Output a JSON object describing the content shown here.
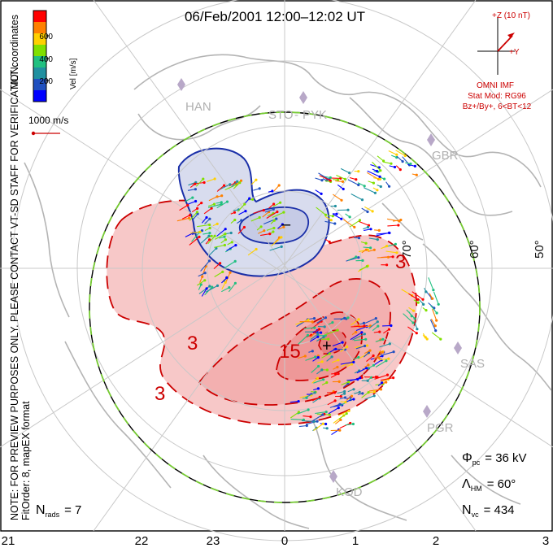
{
  "title": "06/Feb/2001 12:00–12:02 UT",
  "coords_label": "MLT coordinates",
  "side_note_line1": "NOTE: FOR PREVIEW PURPOSES ONLY. PLEASE CONTACT VT-SD STAFF FOR VERIFICATION.",
  "side_note_line2": "FitOrder: 8, mapEX format",
  "colorbar": {
    "unit_label": "Vel [m/s]",
    "ticks": [
      "600",
      "400",
      "200"
    ],
    "colors": [
      "#ff0000",
      "#ff8000",
      "#ffd000",
      "#80e000",
      "#20c080",
      "#2090a0",
      "#2050c0",
      "#0000ff"
    ]
  },
  "scale_label": "1000 m/s",
  "imf": {
    "axis_z": "+Z (10 nT)",
    "axis_y": "+Y",
    "line1": "OMNI IMF",
    "line2": "Stat Mod: RG96",
    "line3": "Bz+/By+, 6<BT<12",
    "color": "#cc0000"
  },
  "stations": [
    "HAN",
    "STO",
    "PYK",
    "GBR",
    "SAS",
    "PGR",
    "KOD"
  ],
  "lat_labels": [
    "70°",
    "60°",
    "50°"
  ],
  "mlt_labels": [
    "21",
    "22",
    "23",
    "0",
    "1",
    "2",
    "3"
  ],
  "contour_labels": [
    "3",
    "3",
    "15",
    "3",
    "–",
    "+"
  ],
  "stats": {
    "phi_symbol": "Φ",
    "phi_sub": "pc",
    "phi_value": "= 36 kV",
    "lambda_symbol": "Λ",
    "lambda_sub": "HM",
    "lambda_value": "= 60°",
    "nvc_symbol": "N",
    "nvc_sub": "vc",
    "nvc_value": "= 434",
    "nrads_symbol": "N",
    "nrads_sub": "rads",
    "nrads_value": "= 7"
  },
  "colors": {
    "positive_fill": "#f7c8c8",
    "positive_core": "#f09a9a",
    "positive_line": "#cc0000",
    "negative_fill": "#d8dcee",
    "negative_line": "#1a2fa8",
    "boundary_dash": "#77cc33",
    "grid": "#c8c8c8",
    "land": "#b4b4b4"
  }
}
